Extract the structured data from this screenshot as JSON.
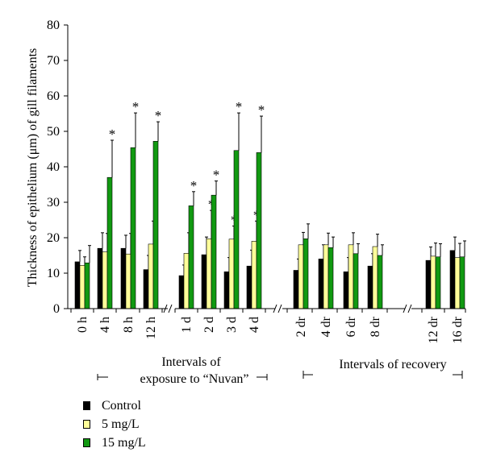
{
  "chart_data": {
    "type": "bar",
    "ylabel": "Thickness of epithelium (μm) of gill filaments",
    "ylim": [
      0,
      80
    ],
    "yticks": [
      "0",
      "10",
      "20",
      "30",
      "40",
      "50",
      "60",
      "70",
      "80"
    ],
    "yticks_values": [
      0,
      10,
      20,
      30,
      40,
      50,
      60,
      70,
      80
    ],
    "categories": [
      "0 h",
      "4 h",
      "8 h",
      "12 h",
      "1 d",
      "2 d",
      "3 d",
      "4 d",
      "2 dr",
      "4 dr",
      "6 dr",
      "8 dr",
      "12 dr",
      "16 dr"
    ],
    "group_labels": [
      "Intervals of exposure to “Nuvan”",
      "Intervals of recovery"
    ],
    "significance_marker": "*",
    "series": [
      {
        "name": "Control",
        "color": "#000000",
        "values": [
          13.2,
          17.0,
          17.0,
          11.0,
          9.3,
          15.2,
          10.4,
          12.0,
          10.8,
          14.0,
          10.4,
          12.0,
          13.6,
          16.4
        ],
        "errors": [
          3.2,
          4.4,
          3.7,
          4.0,
          3.0,
          5.0,
          4.0,
          4.5,
          3.2,
          4.0,
          4.0,
          3.5,
          3.8,
          3.8
        ],
        "significant": [
          false,
          false,
          false,
          false,
          false,
          false,
          false,
          false,
          false,
          false,
          false,
          false,
          false,
          false
        ]
      },
      {
        "name": "5 mg/L",
        "color": "#ffff99",
        "values": [
          12.2,
          16.0,
          15.4,
          18.2,
          15.6,
          19.7,
          19.6,
          19.0,
          18.0,
          18.0,
          18.0,
          17.5,
          14.8,
          14.4
        ],
        "errors": [
          2.4,
          5.2,
          5.8,
          6.5,
          5.8,
          8.0,
          3.7,
          5.7,
          3.5,
          3.3,
          3.4,
          3.5,
          3.7,
          4.0
        ],
        "significant": [
          false,
          false,
          false,
          false,
          false,
          true,
          true,
          true,
          false,
          false,
          false,
          false,
          false,
          false
        ]
      },
      {
        "name": "15 mg/L",
        "color": "#119911",
        "values": [
          12.9,
          37.0,
          45.4,
          47.2,
          29.0,
          32.0,
          44.6,
          44.0,
          19.7,
          17.2,
          15.5,
          15.0,
          14.6,
          14.6
        ],
        "errors": [
          4.9,
          10.5,
          9.8,
          5.5,
          4.0,
          4.0,
          10.6,
          10.3,
          4.2,
          3.0,
          2.8,
          3.0,
          3.7,
          4.5
        ],
        "significant": [
          false,
          true,
          true,
          true,
          true,
          true,
          true,
          true,
          false,
          false,
          false,
          false,
          false,
          false
        ]
      }
    ]
  }
}
